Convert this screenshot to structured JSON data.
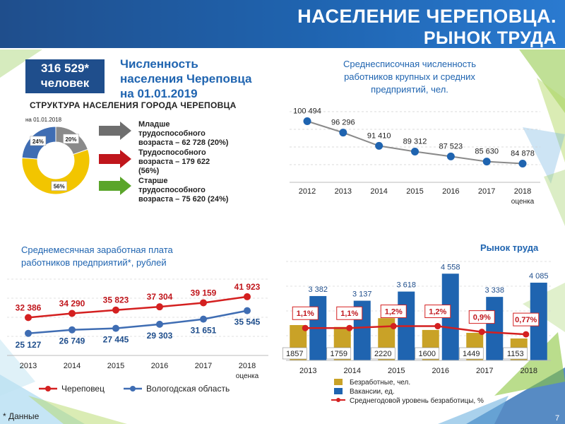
{
  "header": {
    "title_line1": "НАСЕЛЕНИЕ ЧЕРЕПОВЦА.",
    "title_line2": "РЫНОК ТРУДА"
  },
  "population": {
    "value": "316 529*",
    "unit": "человек",
    "title_l1": "Численность",
    "title_l2": "населения Череповца",
    "title_l3": "на 01.01.2019"
  },
  "structure": {
    "title": "СТРУКТУРА НАСЕЛЕНИЯ ГОРОДА ЧЕРЕПОВЦА",
    "date": "на 01.01.2018",
    "legend": [
      {
        "l1": "Младше",
        "l2": "трудоспособного",
        "l3": "возраста – 62 728 (20%)"
      },
      {
        "l1": "Трудоспособного",
        "l2": "возраста – 179 622",
        "l3": "(56%)"
      },
      {
        "l1": "Старше",
        "l2": "трудоспособного",
        "l3": "возраста – 75 620 (24%)"
      }
    ]
  },
  "emp_title": {
    "l1": "Среднесписочная численность",
    "l2": "работников крупных и средних",
    "l3": "предприятий, чел."
  },
  "wage_title": {
    "l1": "Среднемесячная заработная плата",
    "l2": "работников предприятий*, рублей"
  },
  "labor_title": "Рынок труда",
  "footnote": "* Данные",
  "page_number": "7",
  "chart_data": [
    {
      "type": "pie",
      "title": "СТРУКТУРА НАСЕЛЕНИЯ ГОРОДА ЧЕРЕПОВЦА",
      "subtitle": "на 01.01.2018",
      "labels": [
        "Младше трудоспособного возраста",
        "Трудоспособного возраста",
        "Старше трудоспособного возраста"
      ],
      "values": [
        62728,
        179622,
        75620
      ],
      "value_labels": [
        "20%",
        "56%",
        "24%"
      ],
      "colors": [
        "#8a8a8a",
        "#f2c500",
        "#3f6db3"
      ]
    },
    {
      "type": "line",
      "title": "Среднесписочная численность работников крупных и средних предприятий, чел.",
      "categories": [
        "2012",
        "2013",
        "2014",
        "2015",
        "2016",
        "2017",
        "2018"
      ],
      "category_note": "оценка",
      "values": [
        100494,
        96296,
        91410,
        89312,
        87523,
        85630,
        84878
      ],
      "value_labels": [
        "100 494",
        "96 296",
        "91 410",
        "89 312",
        "87 523",
        "85 630",
        "84 878"
      ],
      "ylim": [
        78000,
        104000
      ],
      "grid": true
    },
    {
      "type": "line",
      "title": "Среднемесячная заработная плата работников предприятий*, рублей",
      "categories": [
        "2013",
        "2014",
        "2015",
        "2016",
        "2017",
        "2018"
      ],
      "category_note": "оценка",
      "series": [
        {
          "name": "Череповец",
          "values": [
            32386,
            34290,
            35823,
            37304,
            39159,
            41923
          ],
          "value_labels": [
            "32 386",
            "34 290",
            "35 823",
            "37 304",
            "39 159",
            "41 923"
          ],
          "color": "#d42020"
        },
        {
          "name": "Вологодская область",
          "values": [
            25127,
            26749,
            27445,
            29303,
            31651,
            35545
          ],
          "value_labels": [
            "25 127",
            "26 749",
            "27 445",
            "29 303",
            "31 651",
            "35 545"
          ],
          "color": "#3f6db3"
        }
      ],
      "ylim": [
        15000,
        50000
      ],
      "legend": "bottom"
    },
    {
      "type": "bar",
      "title": "Рынок труда",
      "categories": [
        "2013",
        "2014",
        "2015",
        "2016",
        "2017",
        "2018"
      ],
      "series": [
        {
          "name": "Безработные, чел.",
          "values": [
            1857,
            1759,
            2220,
            1600,
            1449,
            1153
          ],
          "value_labels": [
            "1857",
            "1759",
            "2220",
            "1600",
            "1449",
            "1153"
          ],
          "color": "#c9a227"
        },
        {
          "name": "Вакансии, ед.",
          "values": [
            3382,
            3137,
            3618,
            4558,
            3338,
            4085
          ],
          "value_labels": [
            "3 382",
            "3 137",
            "3 618",
            "4 558",
            "3 338",
            "4 085"
          ],
          "color": "#1f64b0"
        },
        {
          "name": "Среднегодовой уровень безработицы, %",
          "values": [
            1.1,
            1.1,
            1.2,
            1.2,
            0.9,
            0.77
          ],
          "value_labels": [
            "1,1%",
            "1,1%",
            "1,2%",
            "1,2%",
            "0,9%",
            "0,77%"
          ],
          "color": "#d42020",
          "kind": "line"
        }
      ],
      "ylim": [
        0,
        5200
      ],
      "legend": "bottom"
    }
  ]
}
